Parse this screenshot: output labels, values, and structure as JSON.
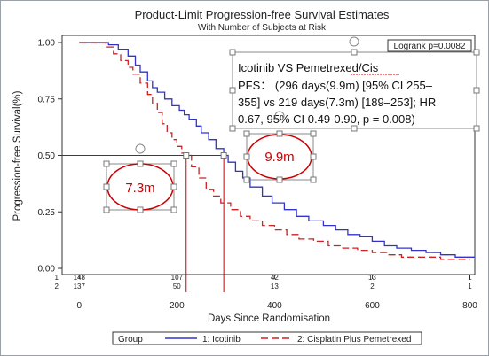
{
  "colors": {
    "icotinib": "#3333cc",
    "pemetrexed": "#cc2222",
    "guide": "#cc0000",
    "axis": "#333333"
  },
  "chart_data": {
    "type": "line",
    "title": "Product-Limit Progression-free Survival Estimates",
    "subtitle": "With Number of Subjects at Risk",
    "xlabel": "Days Since Randomisation",
    "ylabel": "Progression-free Survival(%)",
    "xlim": [
      -35,
      810
    ],
    "ylim": [
      0,
      1
    ],
    "xticks": [
      "0",
      "200",
      "400",
      "600",
      "800"
    ],
    "xtick_values": [
      0,
      200,
      400,
      600,
      800
    ],
    "yticks": [
      "0.00",
      "0.25",
      "0.50",
      "0.75",
      "1.00"
    ],
    "ytick_values": [
      0,
      0.25,
      0.5,
      0.75,
      1.0
    ],
    "grid": false,
    "legend_position": "bottom",
    "legend_title": "Group",
    "logrank": "Logrank p=0.0082",
    "series": [
      {
        "name": "1: Icotinib",
        "style": "solid",
        "points": [
          [
            0,
            1.0
          ],
          [
            40,
            1.0
          ],
          [
            60,
            0.99
          ],
          [
            80,
            0.97
          ],
          [
            100,
            0.94
          ],
          [
            115,
            0.9
          ],
          [
            125,
            0.87
          ],
          [
            140,
            0.83
          ],
          [
            150,
            0.8
          ],
          [
            160,
            0.78
          ],
          [
            175,
            0.75
          ],
          [
            190,
            0.72
          ],
          [
            205,
            0.7
          ],
          [
            215,
            0.68
          ],
          [
            225,
            0.66
          ],
          [
            240,
            0.63
          ],
          [
            250,
            0.6
          ],
          [
            265,
            0.57
          ],
          [
            280,
            0.53
          ],
          [
            296,
            0.5
          ],
          [
            305,
            0.47
          ],
          [
            320,
            0.43
          ],
          [
            335,
            0.4
          ],
          [
            350,
            0.36
          ],
          [
            375,
            0.32
          ],
          [
            395,
            0.29
          ],
          [
            420,
            0.26
          ],
          [
            445,
            0.23
          ],
          [
            470,
            0.21
          ],
          [
            500,
            0.19
          ],
          [
            525,
            0.17
          ],
          [
            550,
            0.15
          ],
          [
            575,
            0.14
          ],
          [
            600,
            0.12
          ],
          [
            625,
            0.1
          ],
          [
            650,
            0.09
          ],
          [
            680,
            0.08
          ],
          [
            710,
            0.07
          ],
          [
            740,
            0.06
          ],
          [
            770,
            0.05
          ],
          [
            810,
            0.05
          ]
        ]
      },
      {
        "name": "2: Cisplatin Plus Pemetrexed",
        "style": "dashed",
        "points": [
          [
            0,
            1.0
          ],
          [
            40,
            1.0
          ],
          [
            55,
            0.98
          ],
          [
            70,
            0.95
          ],
          [
            85,
            0.92
          ],
          [
            100,
            0.89
          ],
          [
            110,
            0.86
          ],
          [
            125,
            0.82
          ],
          [
            140,
            0.77
          ],
          [
            150,
            0.73
          ],
          [
            160,
            0.69
          ],
          [
            170,
            0.64
          ],
          [
            180,
            0.6
          ],
          [
            190,
            0.57
          ],
          [
            200,
            0.54
          ],
          [
            210,
            0.51
          ],
          [
            219,
            0.5
          ],
          [
            230,
            0.45
          ],
          [
            245,
            0.4
          ],
          [
            260,
            0.35
          ],
          [
            275,
            0.32
          ],
          [
            290,
            0.29
          ],
          [
            310,
            0.26
          ],
          [
            330,
            0.23
          ],
          [
            350,
            0.21
          ],
          [
            375,
            0.19
          ],
          [
            400,
            0.17
          ],
          [
            425,
            0.15
          ],
          [
            450,
            0.13
          ],
          [
            480,
            0.12
          ],
          [
            510,
            0.1
          ],
          [
            540,
            0.09
          ],
          [
            570,
            0.08
          ],
          [
            600,
            0.07
          ],
          [
            630,
            0.06
          ],
          [
            660,
            0.05
          ],
          [
            700,
            0.05
          ],
          [
            740,
            0.04
          ],
          [
            800,
            0.04
          ]
        ]
      }
    ],
    "at_risk": {
      "rows": [
        "1",
        "2"
      ],
      "x": [
        0,
        200,
        400,
        600,
        800
      ],
      "values": [
        [
          "148",
          "107",
          "42",
          "13",
          "1"
        ],
        [
          "137",
          "50",
          "13",
          "2",
          "1"
        ]
      ]
    },
    "median_markers": [
      {
        "label": "9.9m",
        "x": 296,
        "y": 0.5
      },
      {
        "label": "7.3m",
        "x": 219,
        "y": 0.5
      }
    ],
    "annotation_lines": [
      "Icotinib VS Pemetrexed/Cis",
      " PFS： (296 days(9.9m) [95% CI 255–",
      "355] vs 219 days(7.3m) [189–253]; HR",
      "0.67, 95% CI 0.49-0.90, p = 0.008)"
    ]
  }
}
